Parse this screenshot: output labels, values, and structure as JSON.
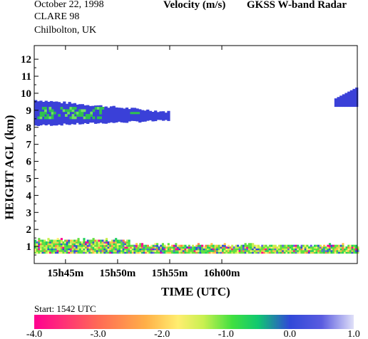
{
  "header": {
    "date": "October  22, 1998",
    "campaign": "CLARE 98",
    "site": "Chilbolton, UK",
    "quantity": "Velocity (m/s)",
    "instrument": "GKSS  W-band Radar"
  },
  "footer": {
    "start": "Start: 1542 UTC"
  },
  "colors": {
    "band_colors": [
      "#ff0090",
      "#ff3a6e",
      "#ff7a4c",
      "#ffc048",
      "#fff070",
      "#c8f050",
      "#60e040",
      "#20d060",
      "#3050d8",
      "#6060e0",
      "#d8d8f4"
    ],
    "cloud_core": "#3a40d8",
    "cloud_green": "#30c050"
  },
  "chart_data": {
    "type": "heatmap",
    "title": "Velocity (m/s)",
    "xlabel": "TIME (UTC)",
    "ylabel": "HEIGHT AGL (km)",
    "xlim_minutes": [
      0,
      31
    ],
    "ylim_km": [
      0,
      12.8
    ],
    "x_ticks": [
      {
        "minute": 3,
        "label": "15h45m"
      },
      {
        "minute": 8,
        "label": "15h50m"
      },
      {
        "minute": 13,
        "label": "15h55m"
      },
      {
        "minute": 18,
        "label": "16h00m"
      }
    ],
    "y_ticks": [
      1,
      2,
      3,
      4,
      5,
      6,
      7,
      8,
      9,
      10,
      11,
      12
    ],
    "colorbar": {
      "min": -4.0,
      "max": 1.0,
      "tick_labels": [
        "-4.0",
        "-3.0",
        "-2.0",
        "-1.0",
        "0.0",
        "1.0"
      ]
    },
    "features": [
      {
        "name": "upper cloud layer",
        "time_start_min": 0,
        "time_end_min": 12.8,
        "base_km": 8.1,
        "top_km": 9.6,
        "velocity_ms": -0.3
      },
      {
        "name": "upper cloud fragment",
        "time_start_min": 28.8,
        "time_end_min": 31,
        "base_km": 9.2,
        "top_km": 10.4,
        "velocity_ms": -0.3
      },
      {
        "name": "boundary layer echo",
        "time_start_min": 0,
        "time_end_min": 31,
        "base_km": 0.6,
        "top_km": 1.3,
        "velocity_ms": -1.2
      }
    ]
  }
}
